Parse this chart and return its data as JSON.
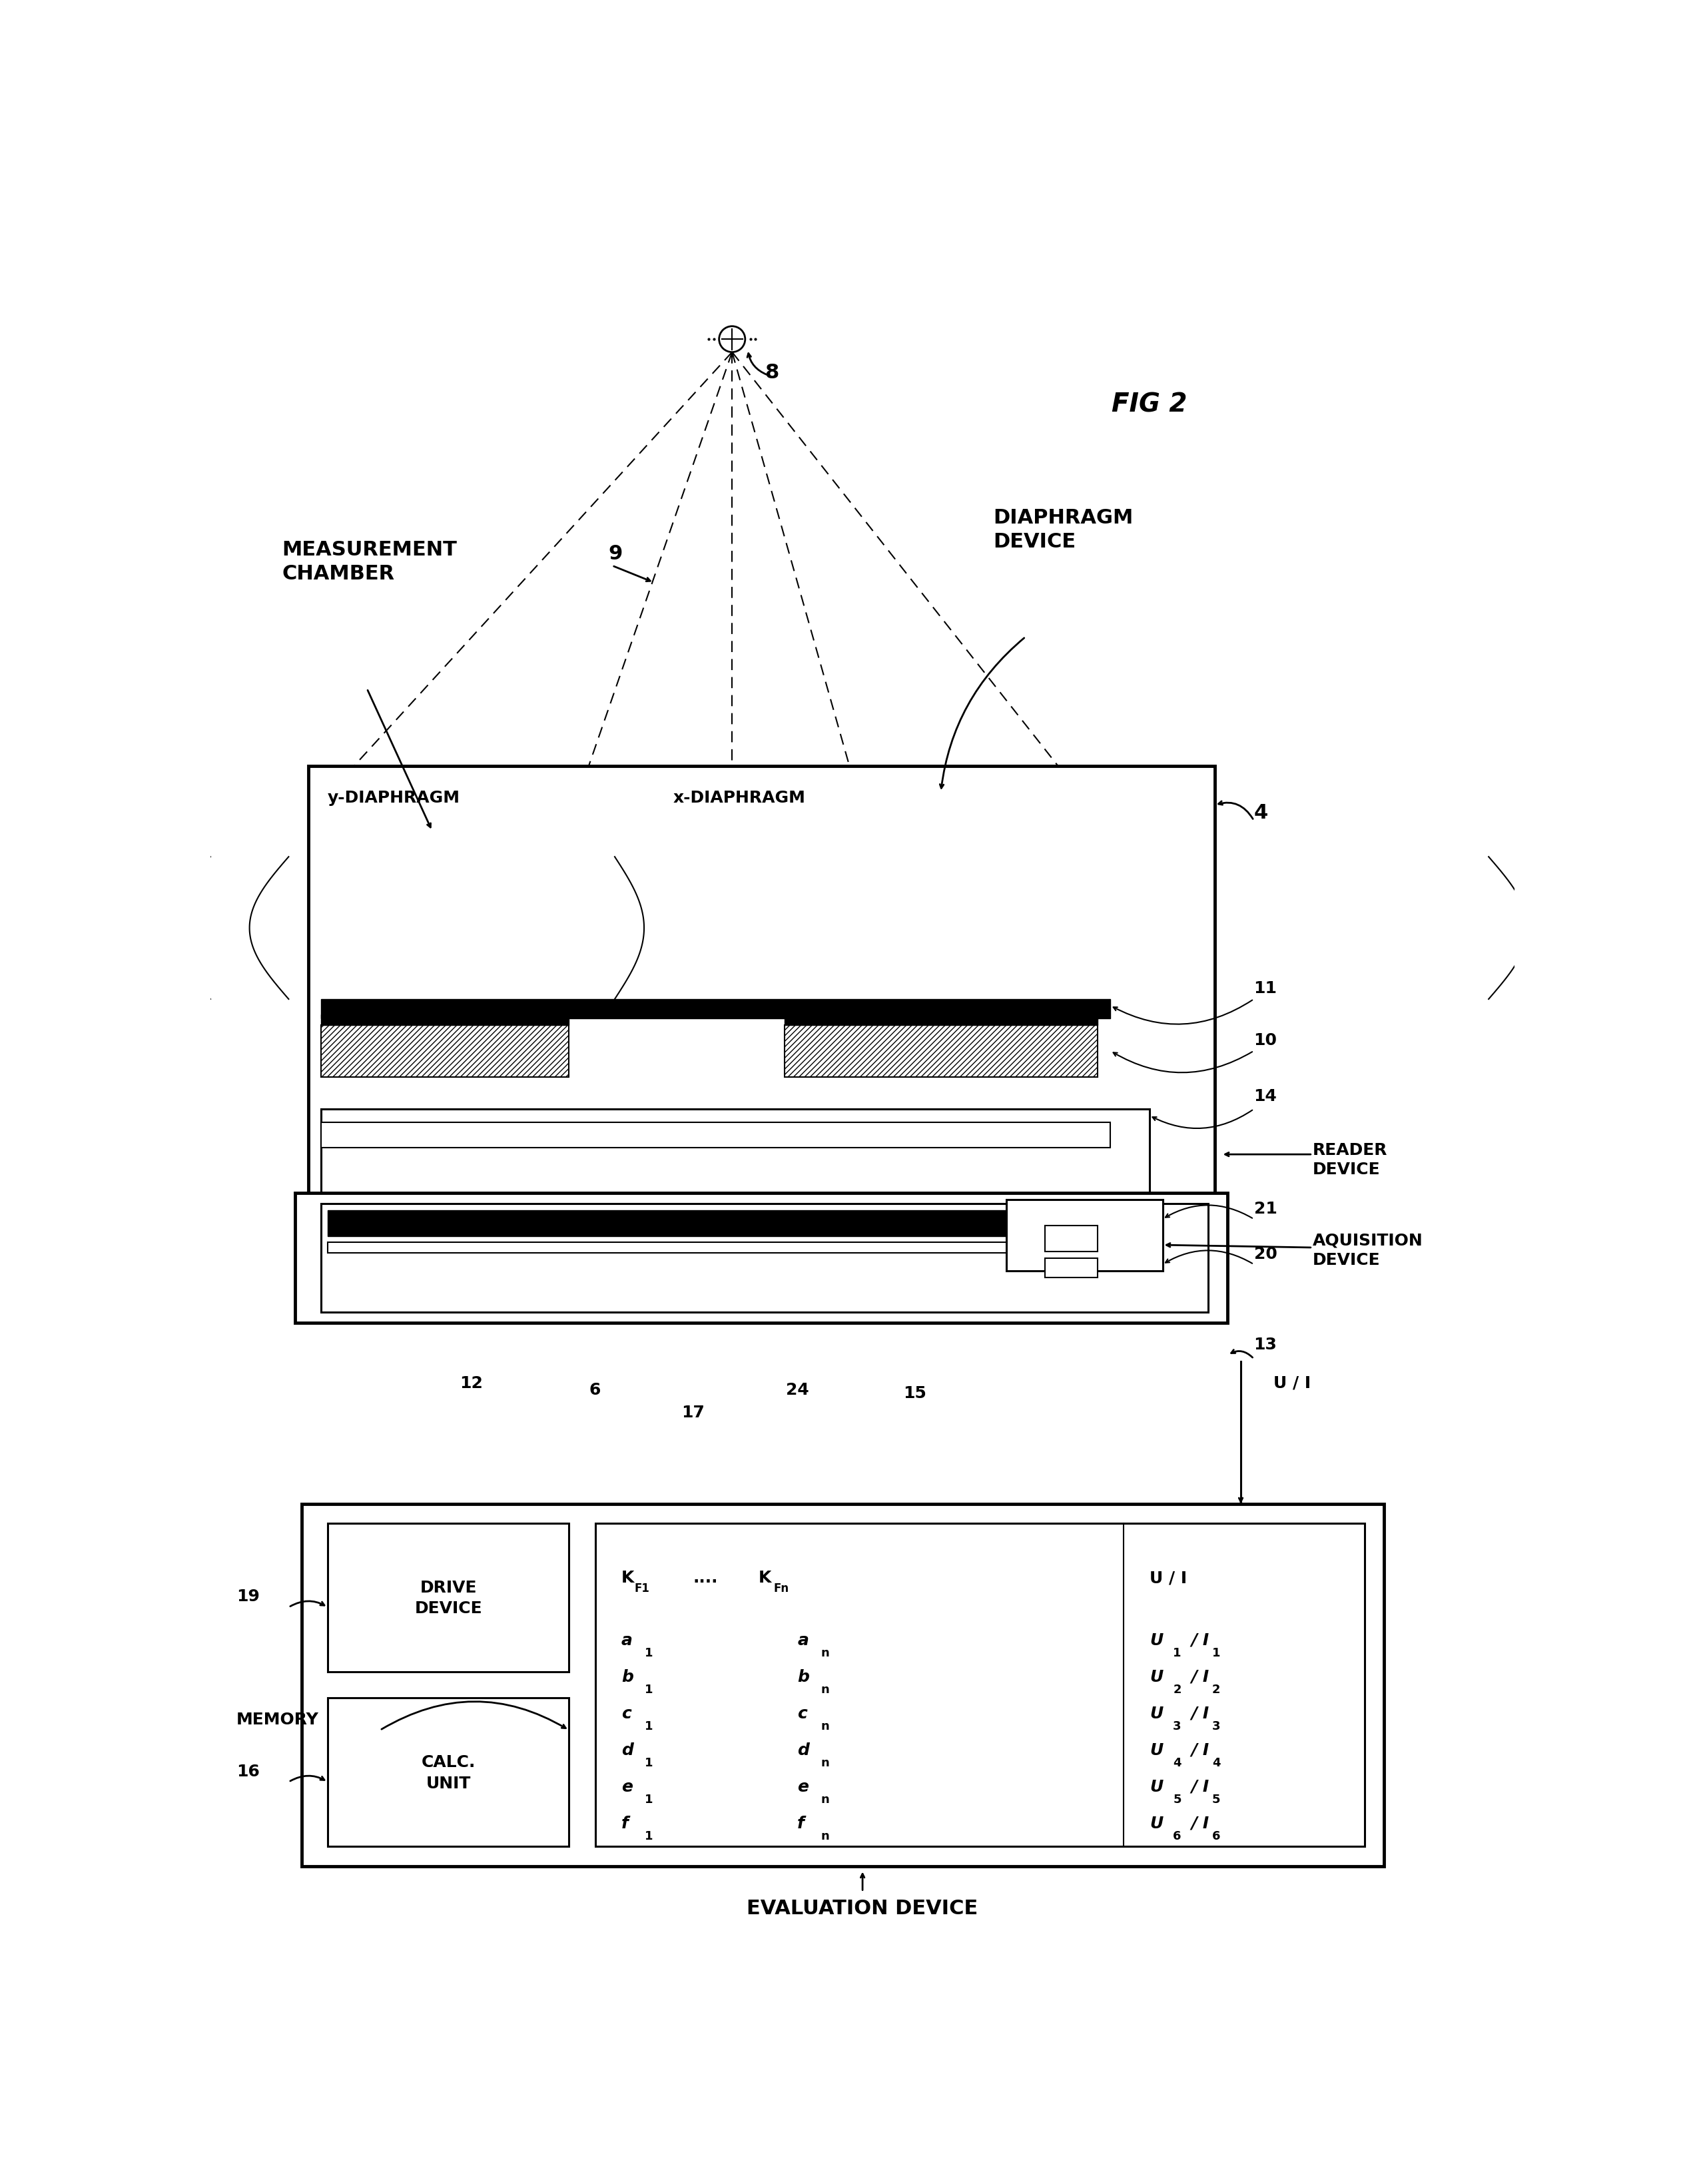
{
  "background_color": "#ffffff",
  "fig_width": 25.27,
  "fig_height": 32.8,
  "fig_title": "FIG 2",
  "labels": {
    "measurement_chamber": "MEASUREMENT\nCHAMBER",
    "diaphragm_device": "DIAPHRAGM\nDEVICE",
    "y_diaphragm": "y-DIAPHRAGM",
    "x_diaphragm": "x-DIAPHRAGM",
    "reader_device": "READER\nDEVICE",
    "aquisition_device": "AQUISITION\nDEVICE",
    "evaluation_device": "EVALUATION DEVICE",
    "drive_device": "DRIVE\nDEVICE",
    "memory": "MEMORY",
    "calc_unit": "CALC.\nUNIT",
    "u_over_i": "U / I",
    "kf1": "K",
    "kfn": "K",
    "header_u_i": "U / I"
  },
  "table_rows": [
    [
      "a",
      "a",
      "U",
      "I",
      "1"
    ],
    [
      "b",
      "b",
      "U",
      "I",
      "2"
    ],
    [
      "c",
      "c",
      "U",
      "I",
      "3"
    ],
    [
      "d",
      "d",
      "U",
      "I",
      "4"
    ],
    [
      "e",
      "e",
      "U",
      "I",
      "5"
    ],
    [
      "f",
      "f",
      "U",
      "I",
      "6"
    ]
  ]
}
